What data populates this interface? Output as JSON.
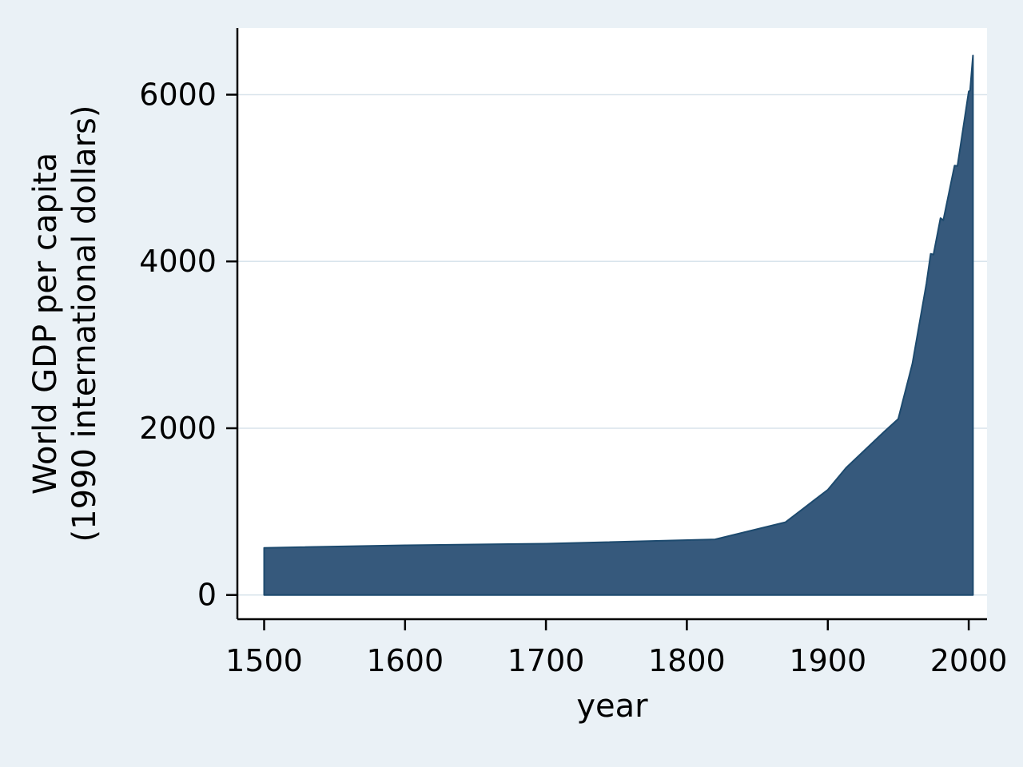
{
  "chart_data": {
    "type": "area",
    "title": "",
    "xlabel": "year",
    "ylabel": "World GDP per capita (1990 international dollars)",
    "ylabel_lines": [
      "World GDP per capita",
      "(1990 international dollars)"
    ],
    "xticks": [
      1500,
      1600,
      1700,
      1800,
      1900,
      2000
    ],
    "yticks": [
      0,
      2000,
      4000,
      6000
    ],
    "xlim": [
      1481,
      2013
    ],
    "ylim": [
      -290,
      6800
    ],
    "grid": true,
    "legend": false,
    "baseline": 0,
    "series": [
      {
        "name": "World GDP per capita (1990 international dollars)",
        "points": [
          [
            1500,
            566
          ],
          [
            1600,
            596
          ],
          [
            1700,
            615
          ],
          [
            1820,
            667
          ],
          [
            1870,
            873
          ],
          [
            1900,
            1262
          ],
          [
            1913,
            1526
          ],
          [
            1940,
            1958
          ],
          [
            1950,
            2111
          ],
          [
            1960,
            2773
          ],
          [
            1970,
            3736
          ],
          [
            1973,
            4091
          ],
          [
            1975,
            4083
          ],
          [
            1980,
            4520
          ],
          [
            1982,
            4494
          ],
          [
            1990,
            5150
          ],
          [
            1992,
            5145
          ],
          [
            2000,
            6038
          ],
          [
            2001,
            6049
          ],
          [
            2003,
            6469
          ]
        ]
      }
    ],
    "colors": {
      "figure_background": "#EAF1F6",
      "plot_background": "#FFFFFF",
      "area_fill": "#36597C",
      "area_stroke": "#1D4A6E",
      "gridline": "#D9E4EC",
      "axis": "#000000",
      "text": "#000000"
    }
  }
}
